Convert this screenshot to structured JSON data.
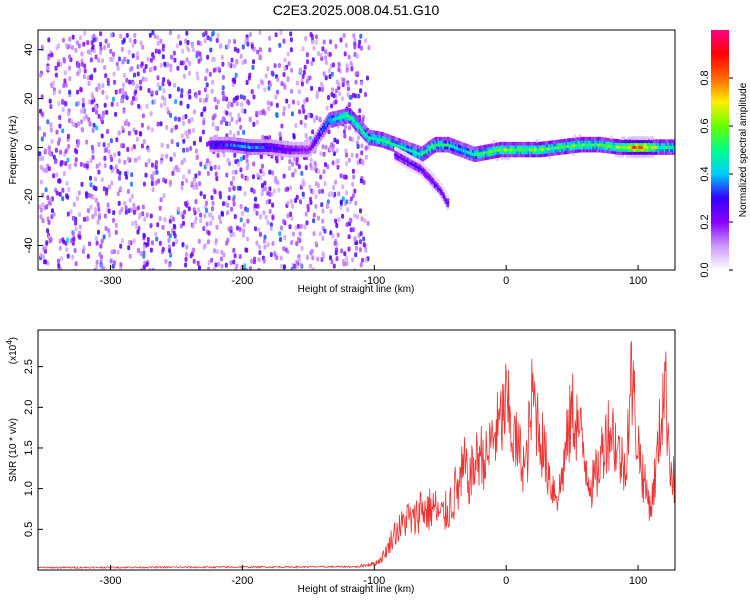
{
  "title": "C2E3.2025.008.04.51.G10",
  "chart_data": [
    {
      "type": "heatmap",
      "xlabel": "Height of straight line (km)",
      "ylabel": "Frequency (Hz)",
      "xlim": [
        -355,
        128
      ],
      "ylim": [
        -50,
        48
      ],
      "xticks": [
        -300,
        -200,
        -100,
        0,
        100
      ],
      "yticks": [
        -40,
        -20,
        0,
        20,
        40
      ],
      "colorbar": {
        "label": "Normalized spectral amplitude",
        "range": [
          0,
          1
        ],
        "ticks": [
          "0.0",
          "0.2",
          "0.4",
          "0.6",
          "0.8"
        ],
        "colors": [
          "#ffffff",
          "#cc99ff",
          "#8800ff",
          "#3300ff",
          "#00ccff",
          "#00ff88",
          "#66ff00",
          "#ffee00",
          "#ff6600",
          "#ff0000",
          "#ff0088"
        ]
      },
      "noise_region_x": [
        -355,
        -105
      ],
      "signal_track": {
        "x": [
          -225,
          -210,
          -195,
          -180,
          -165,
          -150,
          -135,
          -120,
          -105,
          -95,
          -85,
          -75,
          -65,
          -55,
          -45,
          -35,
          -25,
          -15,
          -5,
          10,
          25,
          40,
          55,
          70,
          85,
          100,
          115,
          128
        ],
        "y": [
          2,
          2,
          1,
          1,
          0,
          0,
          12,
          14,
          5,
          4,
          2,
          0,
          -2,
          2,
          2,
          0,
          -2,
          -1,
          0,
          0,
          0,
          1,
          2,
          2,
          1,
          1,
          1,
          1
        ],
        "amplitude": [
          0.3,
          0.35,
          0.4,
          0.3,
          0.25,
          0.2,
          0.45,
          0.55,
          0.5,
          0.55,
          0.5,
          0.45,
          0.5,
          0.55,
          0.5,
          0.45,
          0.5,
          0.55,
          0.6,
          0.55,
          0.6,
          0.55,
          0.6,
          0.55,
          0.6,
          0.9,
          0.55,
          0.5
        ]
      },
      "side_branch": {
        "x": [
          -85,
          -75,
          -65,
          -58,
          -50,
          -45
        ],
        "y": [
          -2,
          -5,
          -8,
          -12,
          -17,
          -22
        ]
      }
    },
    {
      "type": "line",
      "xlabel": "Height of straight line (km)",
      "ylabel": "SNR (10 * v/v)",
      "multiplier": "(x10",
      "multiplier_exp": "4",
      "multiplier_close": ")",
      "xlim": [
        -355,
        128
      ],
      "ylim": [
        0,
        2.95
      ],
      "xticks": [
        -300,
        -200,
        -100,
        0,
        100
      ],
      "yticks": [
        "0.5",
        "1.0",
        "1.5",
        "2.0",
        "2.5"
      ],
      "color": "#ee3333",
      "series": {
        "x": [
          -355,
          -110,
          -100,
          -95,
          -90,
          -85,
          -80,
          -75,
          -70,
          -65,
          -60,
          -55,
          -50,
          -45,
          -40,
          -35,
          -30,
          -25,
          -20,
          -15,
          -10,
          -5,
          0,
          5,
          10,
          15,
          20,
          25,
          30,
          35,
          40,
          45,
          50,
          55,
          60,
          65,
          70,
          75,
          80,
          85,
          90,
          95,
          100,
          105,
          110,
          115,
          120,
          125,
          128
        ],
        "y": [
          0.03,
          0.04,
          0.06,
          0.1,
          0.2,
          0.35,
          0.4,
          0.5,
          0.45,
          0.6,
          0.55,
          0.6,
          0.5,
          0.55,
          0.7,
          0.8,
          1.0,
          1.2,
          1.4,
          1.3,
          1.6,
          1.7,
          2.0,
          1.6,
          1.4,
          1.2,
          2.1,
          1.7,
          1.3,
          1.0,
          0.9,
          1.4,
          1.9,
          1.7,
          1.3,
          1.0,
          1.2,
          1.6,
          1.7,
          1.4,
          1.2,
          2.3,
          1.5,
          1.0,
          0.75,
          1.4,
          2.3,
          1.2,
          1.0
        ]
      }
    }
  ]
}
